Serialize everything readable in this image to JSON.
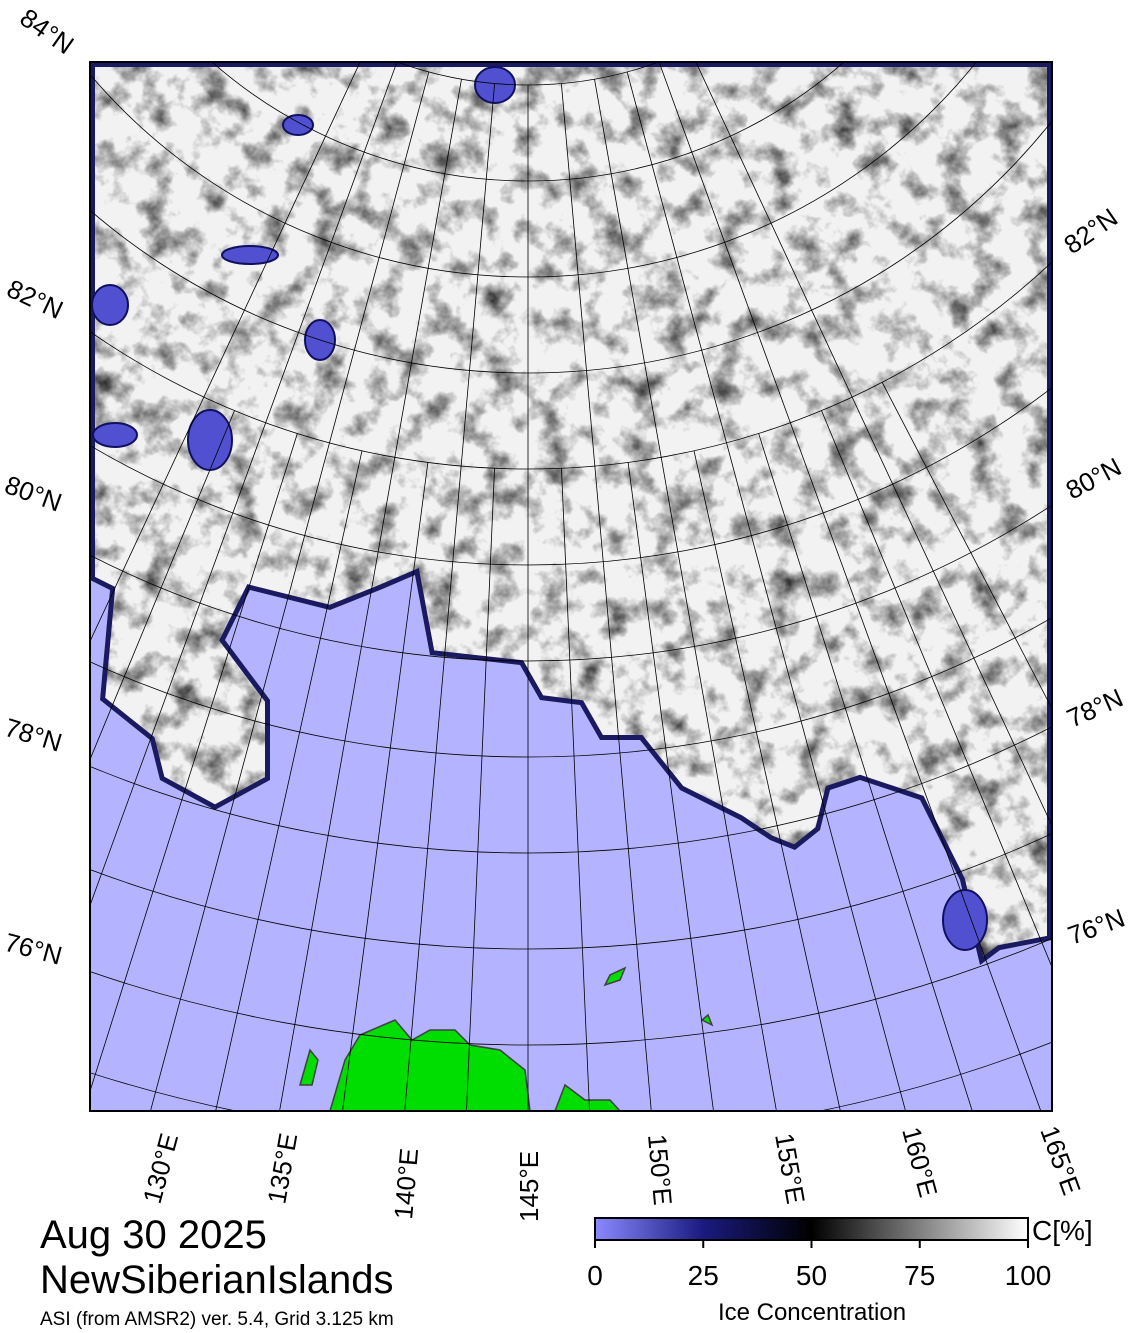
{
  "map": {
    "latitude_labels": [
      "84°N",
      "82°N",
      "80°N",
      "78°N",
      "76°N",
      "82°N",
      "80°N",
      "78°N",
      "76°N"
    ],
    "longitude_labels": [
      "130°E",
      "135°E",
      "140°E",
      "145°E",
      "150°E",
      "155°E",
      "160°E",
      "165°E"
    ]
  },
  "date": "Aug 30 2025",
  "region": "NewSiberianIslands",
  "source": "ASI (from AMSR2) ver. 5.4,  Grid 3.125 km",
  "colorbar": {
    "unit": "C[%]",
    "label": "Ice Concentration",
    "lim": [
      0,
      100
    ],
    "ticks": [
      0,
      25,
      50,
      75,
      100
    ]
  }
}
